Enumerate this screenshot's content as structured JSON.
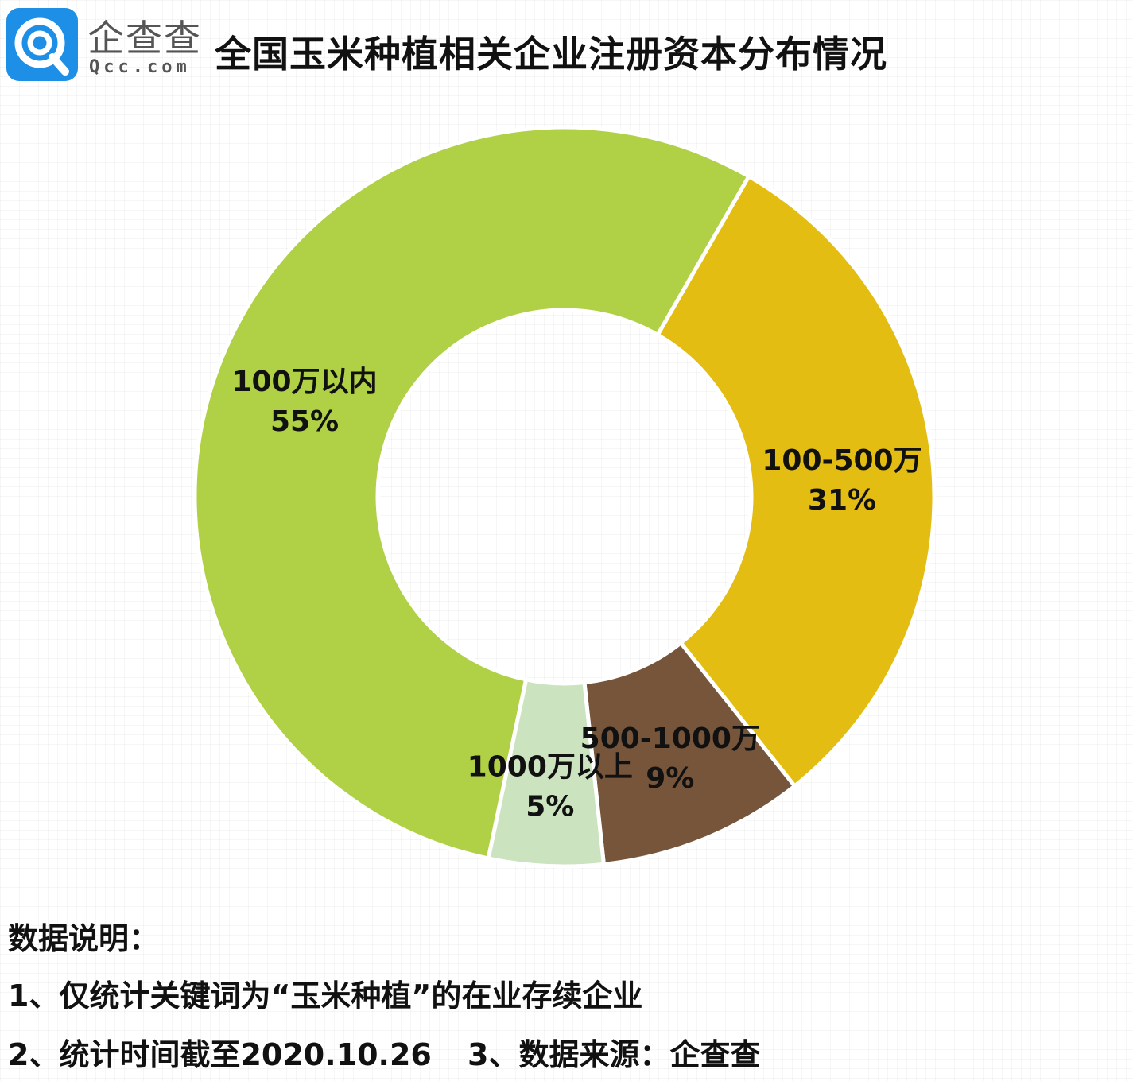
{
  "brand": {
    "name_cn": "企查查",
    "name_en": "Qcc.com",
    "logo_icon": "qcc-logo-icon",
    "logo_color": "#1d8fe6"
  },
  "chart_data": {
    "type": "pie",
    "variant": "donut",
    "title": "全国玉米种植相关企业注册资本分布情况",
    "start_angle_deg": -60.1,
    "direction": "clockwise",
    "slices": [
      {
        "label": "100-500万",
        "value": 31,
        "value_label": "31%",
        "color": "#e3bd12"
      },
      {
        "label": "500-1000万",
        "value": 9,
        "value_label": "9%",
        "color": "#76553a"
      },
      {
        "label": "1000万以上",
        "value": 5,
        "value_label": "5%",
        "color": "#cbe3bf"
      },
      {
        "label": "100万以内",
        "value": 55,
        "value_label": "55%",
        "color": "#b0d045"
      }
    ]
  },
  "notes": {
    "heading": "数据说明：",
    "line1": "1、仅统计关键词为“玉米种植”的在业存续企业",
    "line2": "2、统计时间截至2020.10.26",
    "line3": "3、数据来源：企查查"
  }
}
